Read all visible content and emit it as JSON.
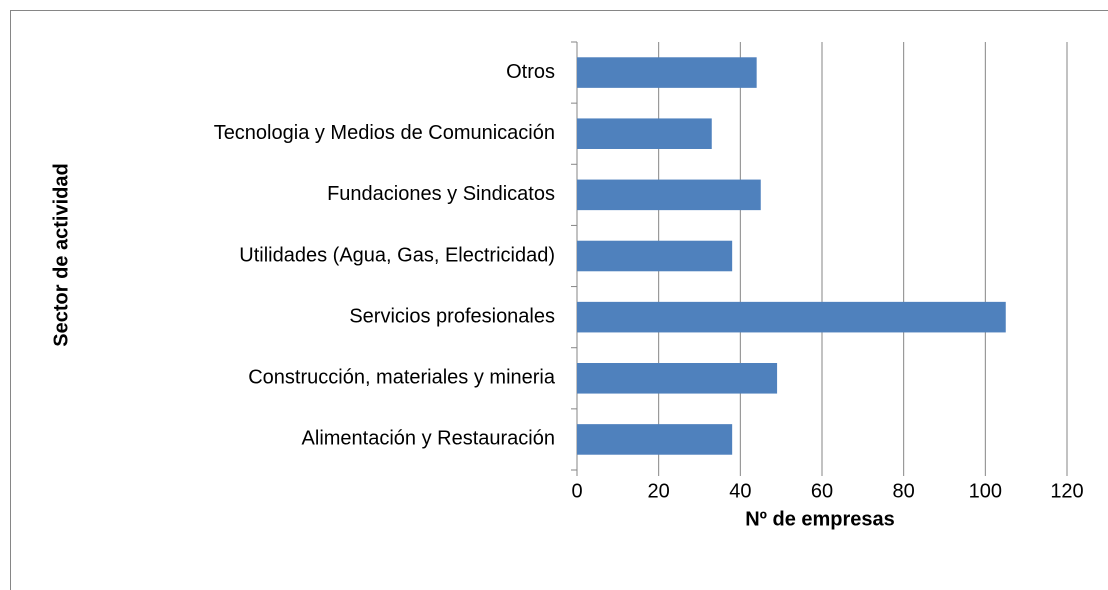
{
  "chart_data": {
    "type": "bar",
    "orientation": "horizontal",
    "x_label": "Nº de empresas",
    "y_label": "Sector de actividad",
    "categories": [
      "Alimentación y Restauración",
      "Construcción, materiales y mineria",
      "Servicios profesionales",
      "Utilidades (Agua, Gas, Electricidad)",
      "Fundaciones y Sindicatos",
      "Tecnologia y Medios de Comunicación",
      "Otros"
    ],
    "values": [
      38,
      49,
      105,
      38,
      45,
      33,
      44
    ],
    "color": "#4f81bd",
    "xlim": [
      0,
      120
    ],
    "xticks": [
      0,
      20,
      40,
      60,
      80,
      100,
      120
    ],
    "grid": true
  }
}
